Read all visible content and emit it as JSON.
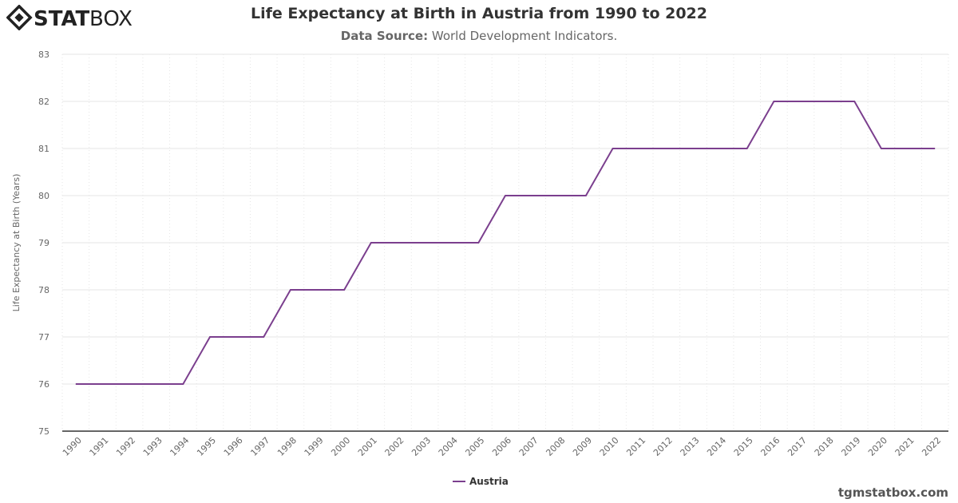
{
  "brand": {
    "logo_text_bold": "STAT",
    "logo_text_light": "BOX"
  },
  "header": {
    "title": "Life Expectancy at Birth in Austria from 1990 to 2022",
    "source_label": "Data Source:",
    "source_value": "World Development Indicators."
  },
  "footer": {
    "site": "tgmstatbox.com"
  },
  "chart_data": {
    "type": "line",
    "title": "Life Expectancy at Birth in Austria from 1990 to 2022",
    "ylabel": "Life Expectancy at Birth (Years)",
    "xlabel": "",
    "ylim": [
      75,
      83
    ],
    "yticks": [
      75,
      76,
      77,
      78,
      79,
      80,
      81,
      82,
      83
    ],
    "grid": true,
    "legend": "bottom-center",
    "categories": [
      "1990",
      "1991",
      "1992",
      "1993",
      "1994",
      "1995",
      "1996",
      "1997",
      "1998",
      "1999",
      "2000",
      "2001",
      "2002",
      "2003",
      "2004",
      "2005",
      "2006",
      "2007",
      "2008",
      "2009",
      "2010",
      "2011",
      "2012",
      "2013",
      "2014",
      "2015",
      "2016",
      "2017",
      "2018",
      "2019",
      "2020",
      "2021",
      "2022"
    ],
    "series": [
      {
        "name": "Austria",
        "color": "#7b3f8e",
        "values": [
          76,
          76,
          76,
          76,
          76,
          77,
          77,
          77,
          78,
          78,
          78,
          79,
          79,
          79,
          79,
          79,
          80,
          80,
          80,
          80,
          81,
          81,
          81,
          81,
          81,
          81,
          82,
          82,
          82,
          82,
          81,
          81,
          81
        ]
      }
    ]
  }
}
